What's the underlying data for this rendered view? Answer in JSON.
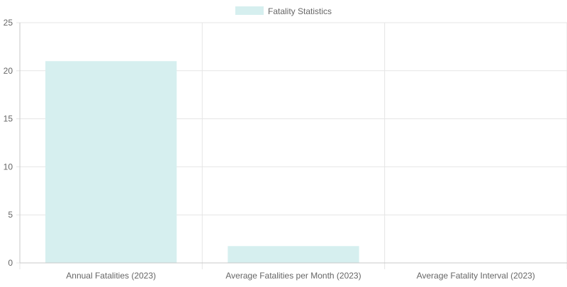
{
  "chart_data": {
    "type": "bar",
    "categories": [
      "Annual Fatalities (2023)",
      "Average Fatalities per Month (2023)",
      "Average Fatality Interval (2023)"
    ],
    "series": [
      {
        "name": "Fatality Statistics",
        "values": [
          21,
          1.75,
          0
        ],
        "color": "#d6efef"
      }
    ],
    "ylim": [
      0,
      25
    ],
    "yticks": [
      0,
      5,
      10,
      15,
      20,
      25
    ],
    "grid": true,
    "legend_position": "top-center",
    "colors": {
      "bar": "#d6efef",
      "grid": "#e5e5e5",
      "axis": "#c8c8c8",
      "text": "#666666"
    }
  }
}
